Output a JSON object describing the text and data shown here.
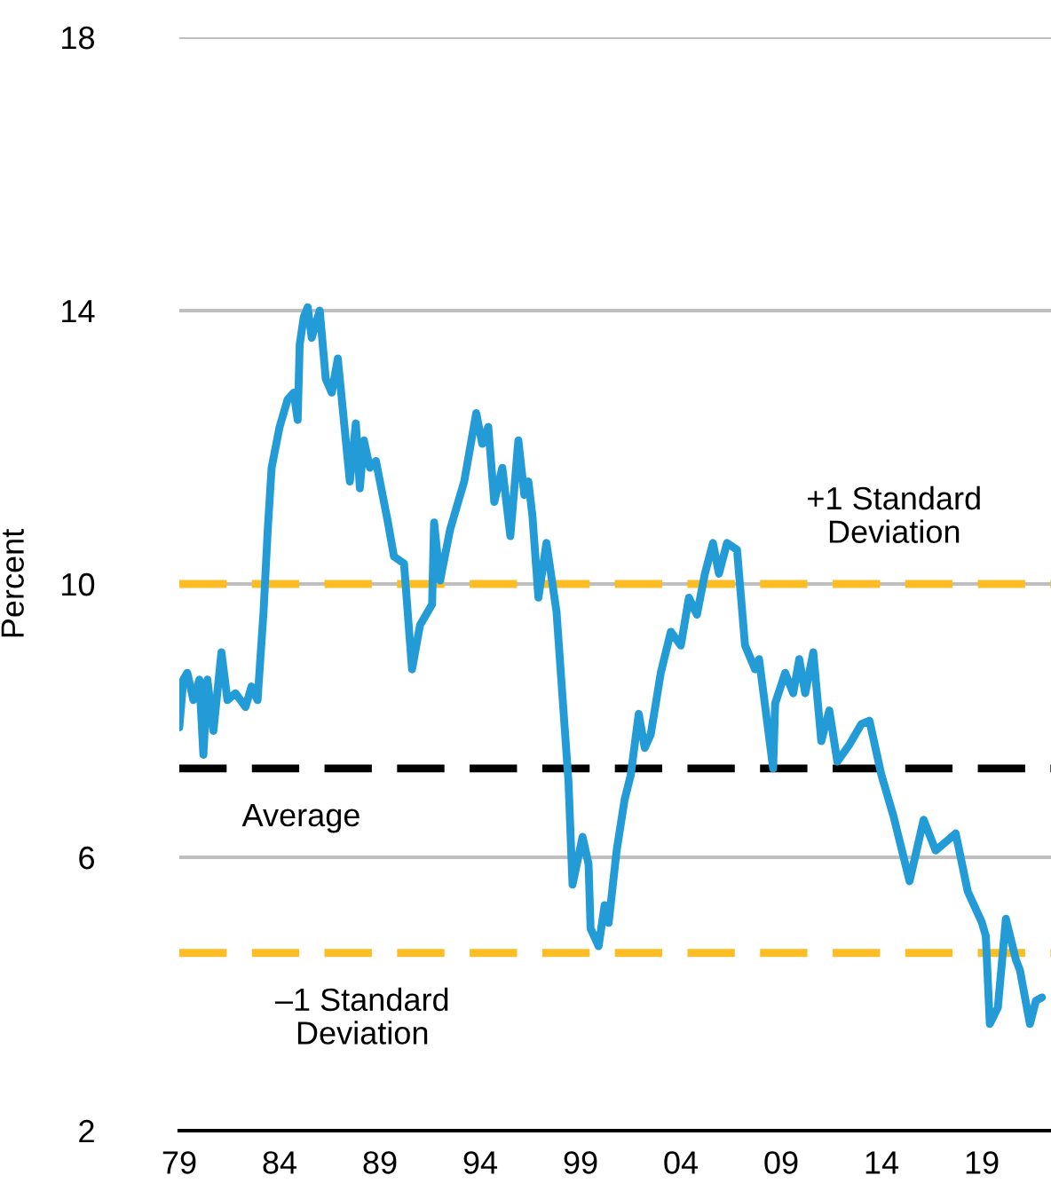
{
  "chart_data": {
    "type": "line",
    "ylabel": "Percent",
    "x": [
      1979.0,
      1979.2,
      1979.4,
      1979.7,
      1980.0,
      1980.2,
      1980.4,
      1980.7,
      1981.1,
      1981.4,
      1981.8,
      1982.3,
      1982.6,
      1982.9,
      1983.2,
      1983.4,
      1983.6,
      1984.0,
      1984.4,
      1984.7,
      1984.9,
      1985.0,
      1985.2,
      1985.4,
      1985.6,
      1986.0,
      1986.3,
      1986.6,
      1986.9,
      1987.1,
      1987.5,
      1987.8,
      1988.0,
      1988.2,
      1988.5,
      1988.8,
      1989.4,
      1989.7,
      1990.2,
      1990.6,
      1991.0,
      1991.6,
      1991.7,
      1992.0,
      1992.5,
      1992.8,
      1993.2,
      1993.8,
      1994.1,
      1994.4,
      1994.7,
      1995.1,
      1995.5,
      1995.9,
      1996.2,
      1996.4,
      1996.6,
      1996.9,
      1997.3,
      1997.8,
      1998.4,
      1998.6,
      1999.1,
      1999.4,
      1999.5,
      1999.9,
      2000.2,
      2000.4,
      2000.8,
      2001.2,
      2001.5,
      2001.9,
      2002.2,
      2002.5,
      2003.0,
      2003.5,
      2004.0,
      2004.4,
      2004.8,
      2005.2,
      2005.6,
      2005.9,
      2006.3,
      2006.8,
      2007.2,
      2007.7,
      2007.9,
      2008.6,
      2008.7,
      2009.2,
      2009.6,
      2009.9,
      2010.2,
      2010.6,
      2011.0,
      2011.4,
      2011.8,
      2012.4,
      2013.0,
      2013.4,
      2014.0,
      2014.6,
      2015.4,
      2016.1,
      2016.7,
      2017.7,
      2018.3,
      2019.0,
      2019.2,
      2019.4,
      2019.8,
      2020.2,
      2020.7,
      2020.9,
      2021.4,
      2021.7,
      2022.0
    ],
    "series": [
      {
        "color": "#229bd7",
        "values": [
          7.9,
          8.6,
          8.7,
          8.3,
          8.6,
          7.5,
          8.6,
          7.85,
          9.0,
          8.3,
          8.4,
          8.2,
          8.5,
          8.3,
          9.6,
          10.75,
          11.7,
          12.3,
          12.7,
          12.8,
          12.4,
          13.5,
          13.9,
          14.05,
          13.6,
          14.0,
          13.0,
          12.8,
          13.3,
          12.7,
          11.5,
          12.35,
          11.4,
          12.1,
          11.7,
          11.8,
          10.9,
          10.4,
          10.3,
          8.75,
          9.4,
          9.7,
          10.9,
          10.05,
          10.8,
          11.1,
          11.5,
          12.5,
          12.05,
          12.3,
          11.2,
          11.7,
          10.7,
          12.1,
          11.3,
          11.5,
          11.0,
          9.8,
          10.6,
          9.6,
          7.1,
          5.6,
          6.3,
          5.9,
          4.96,
          4.7,
          5.3,
          5.04,
          6.1,
          6.85,
          7.2,
          8.1,
          7.6,
          7.8,
          8.7,
          9.3,
          9.1,
          9.8,
          9.55,
          10.15,
          10.6,
          10.15,
          10.6,
          10.5,
          9.1,
          8.75,
          8.9,
          7.3,
          8.25,
          8.7,
          8.4,
          8.9,
          8.4,
          9.0,
          7.7,
          8.15,
          7.4,
          7.65,
          7.95,
          8.0,
          7.2,
          6.6,
          5.65,
          6.55,
          6.1,
          6.35,
          5.5,
          5.05,
          4.85,
          3.56,
          3.8,
          5.1,
          4.5,
          4.35,
          3.56,
          3.9,
          3.95
        ]
      }
    ],
    "xlim": [
      1979,
      2022.45
    ],
    "xticks": [
      {
        "value": 1979,
        "label": "79"
      },
      {
        "value": 1984,
        "label": "84"
      },
      {
        "value": 1989,
        "label": "89"
      },
      {
        "value": 1994,
        "label": "94"
      },
      {
        "value": 1999,
        "label": "99"
      },
      {
        "value": 2004,
        "label": "04"
      },
      {
        "value": 2009,
        "label": "09"
      },
      {
        "value": 2014,
        "label": "14"
      },
      {
        "value": 2019,
        "label": "19"
      }
    ],
    "ylim": [
      2,
      18
    ],
    "yticks": [
      2,
      6,
      10,
      14,
      18
    ],
    "grid": "y",
    "ref_lines": [
      {
        "axis": "y",
        "value": 10.0,
        "label": "+1 Standard\nDeviation",
        "color": "#fbbd23",
        "line_style": "dashed"
      },
      {
        "axis": "y",
        "value": 7.3,
        "label": "Average",
        "color": "#000000",
        "line_style": "dashed"
      },
      {
        "axis": "y",
        "value": 4.6,
        "label": "–1 Standard\nDeviation",
        "color": "#fbbd23",
        "line_style": "dashed"
      }
    ]
  }
}
